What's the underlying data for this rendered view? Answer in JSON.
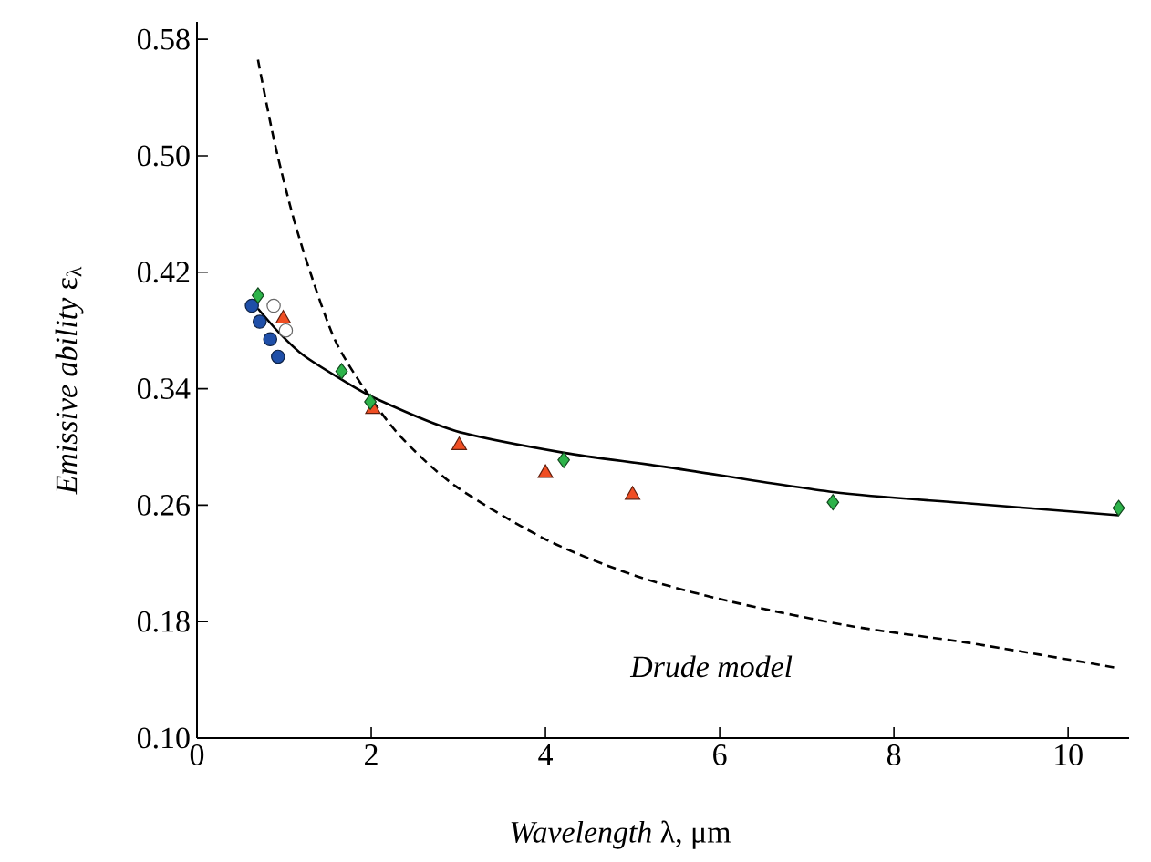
{
  "chart_data": {
    "type": "scatter",
    "xlabel": "*Wavelength* λ, μm",
    "ylabel": "*Emissive ability* ε$_{λ}$",
    "xlim": [
      0,
      10.7
    ],
    "ylim": [
      0.1,
      0.592
    ],
    "xticks": [
      0,
      2,
      4,
      6,
      8,
      10
    ],
    "yticks": [
      {
        "value": 0.1,
        "label": "0.10"
      },
      0.18,
      0.26,
      0.34,
      0.42,
      {
        "value": 0.5,
        "label": "0.50"
      },
      0.58
    ],
    "grid": false,
    "annotations": [
      "*Drude model*"
    ],
    "series": [
      {
        "type": "line",
        "color": "#000000",
        "line_style": "solid",
        "marker": "none",
        "x": [
          0.7,
          0.95,
          1.22,
          1.64,
          2.06,
          2.97,
          4.21,
          5.41,
          7.3,
          8.9,
          10.58
        ],
        "values": [
          0.395,
          0.378,
          0.363,
          0.347,
          0.333,
          0.311,
          0.296,
          0.286,
          0.269,
          0.261,
          0.253
        ]
      },
      {
        "type": "line",
        "color": "#000000",
        "line_style": "dashed",
        "marker": "none",
        "x": [
          0.7,
          0.88,
          1.09,
          1.3,
          1.58,
          1.92,
          2.34,
          2.97,
          4.02,
          5.06,
          6.11,
          7.5,
          8.9,
          10.58
        ],
        "values": [
          0.566,
          0.512,
          0.461,
          0.42,
          0.374,
          0.34,
          0.307,
          0.273,
          0.236,
          0.211,
          0.194,
          0.177,
          0.165,
          0.148
        ]
      },
      {
        "color": "#1f4fa8",
        "marker": "circle",
        "x": [
          0.63,
          0.72,
          0.84,
          0.93
        ],
        "values": [
          0.397,
          0.386,
          0.374,
          0.362
        ]
      },
      {
        "color": "#ffffff",
        "marker": "circle",
        "x": [
          0.88,
          1.02
        ],
        "values": [
          0.397,
          0.38
        ]
      },
      {
        "color": "#f04e23",
        "marker": "triangle",
        "x": [
          0.99,
          2.02,
          3.01,
          4.0,
          5.0
        ],
        "values": [
          0.388,
          0.326,
          0.301,
          0.282,
          0.267
        ]
      },
      {
        "color": "#2db34a",
        "marker": "diamond",
        "x": [
          0.7,
          1.66,
          1.99,
          4.21,
          7.3,
          10.58
        ],
        "values": [
          0.404,
          0.352,
          0.331,
          0.291,
          0.262,
          0.258
        ]
      }
    ]
  }
}
